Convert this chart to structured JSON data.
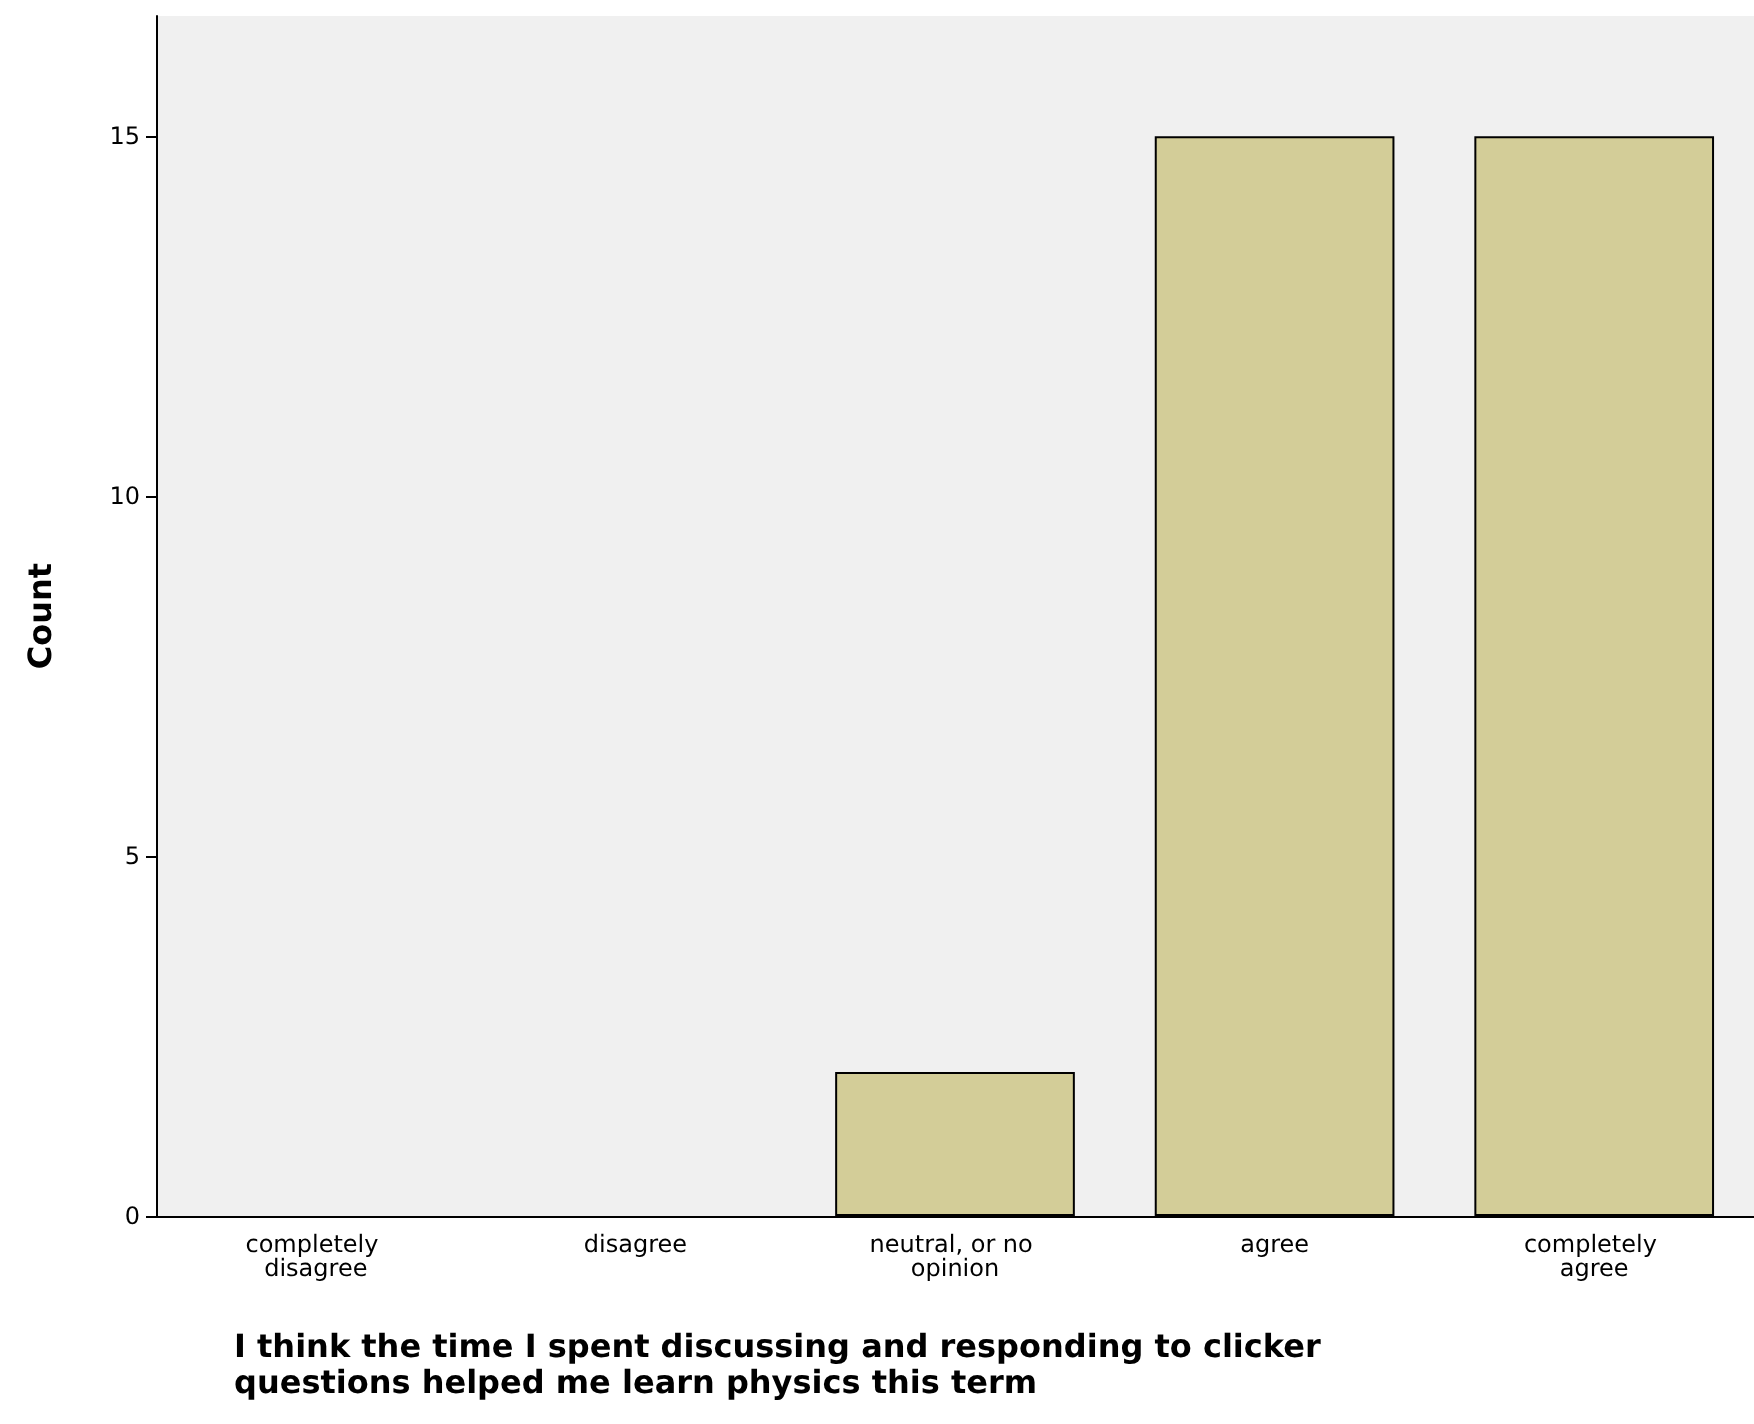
{
  "chart_data": {
    "type": "bar",
    "xlabel": "I think the time I spent discussing and responding to clicker questions helped me learn physics this term",
    "ylabel": "Count",
    "categories": [
      "completely disagree",
      "disagree",
      "neutral, or no opinion",
      "agree",
      "completely agree"
    ],
    "values": [
      0,
      0,
      2,
      15,
      15
    ],
    "color": "#d3cd98",
    "ylim": [
      0,
      16.67
    ],
    "yticks": [
      0,
      5,
      10,
      15
    ],
    "grid": false
  }
}
